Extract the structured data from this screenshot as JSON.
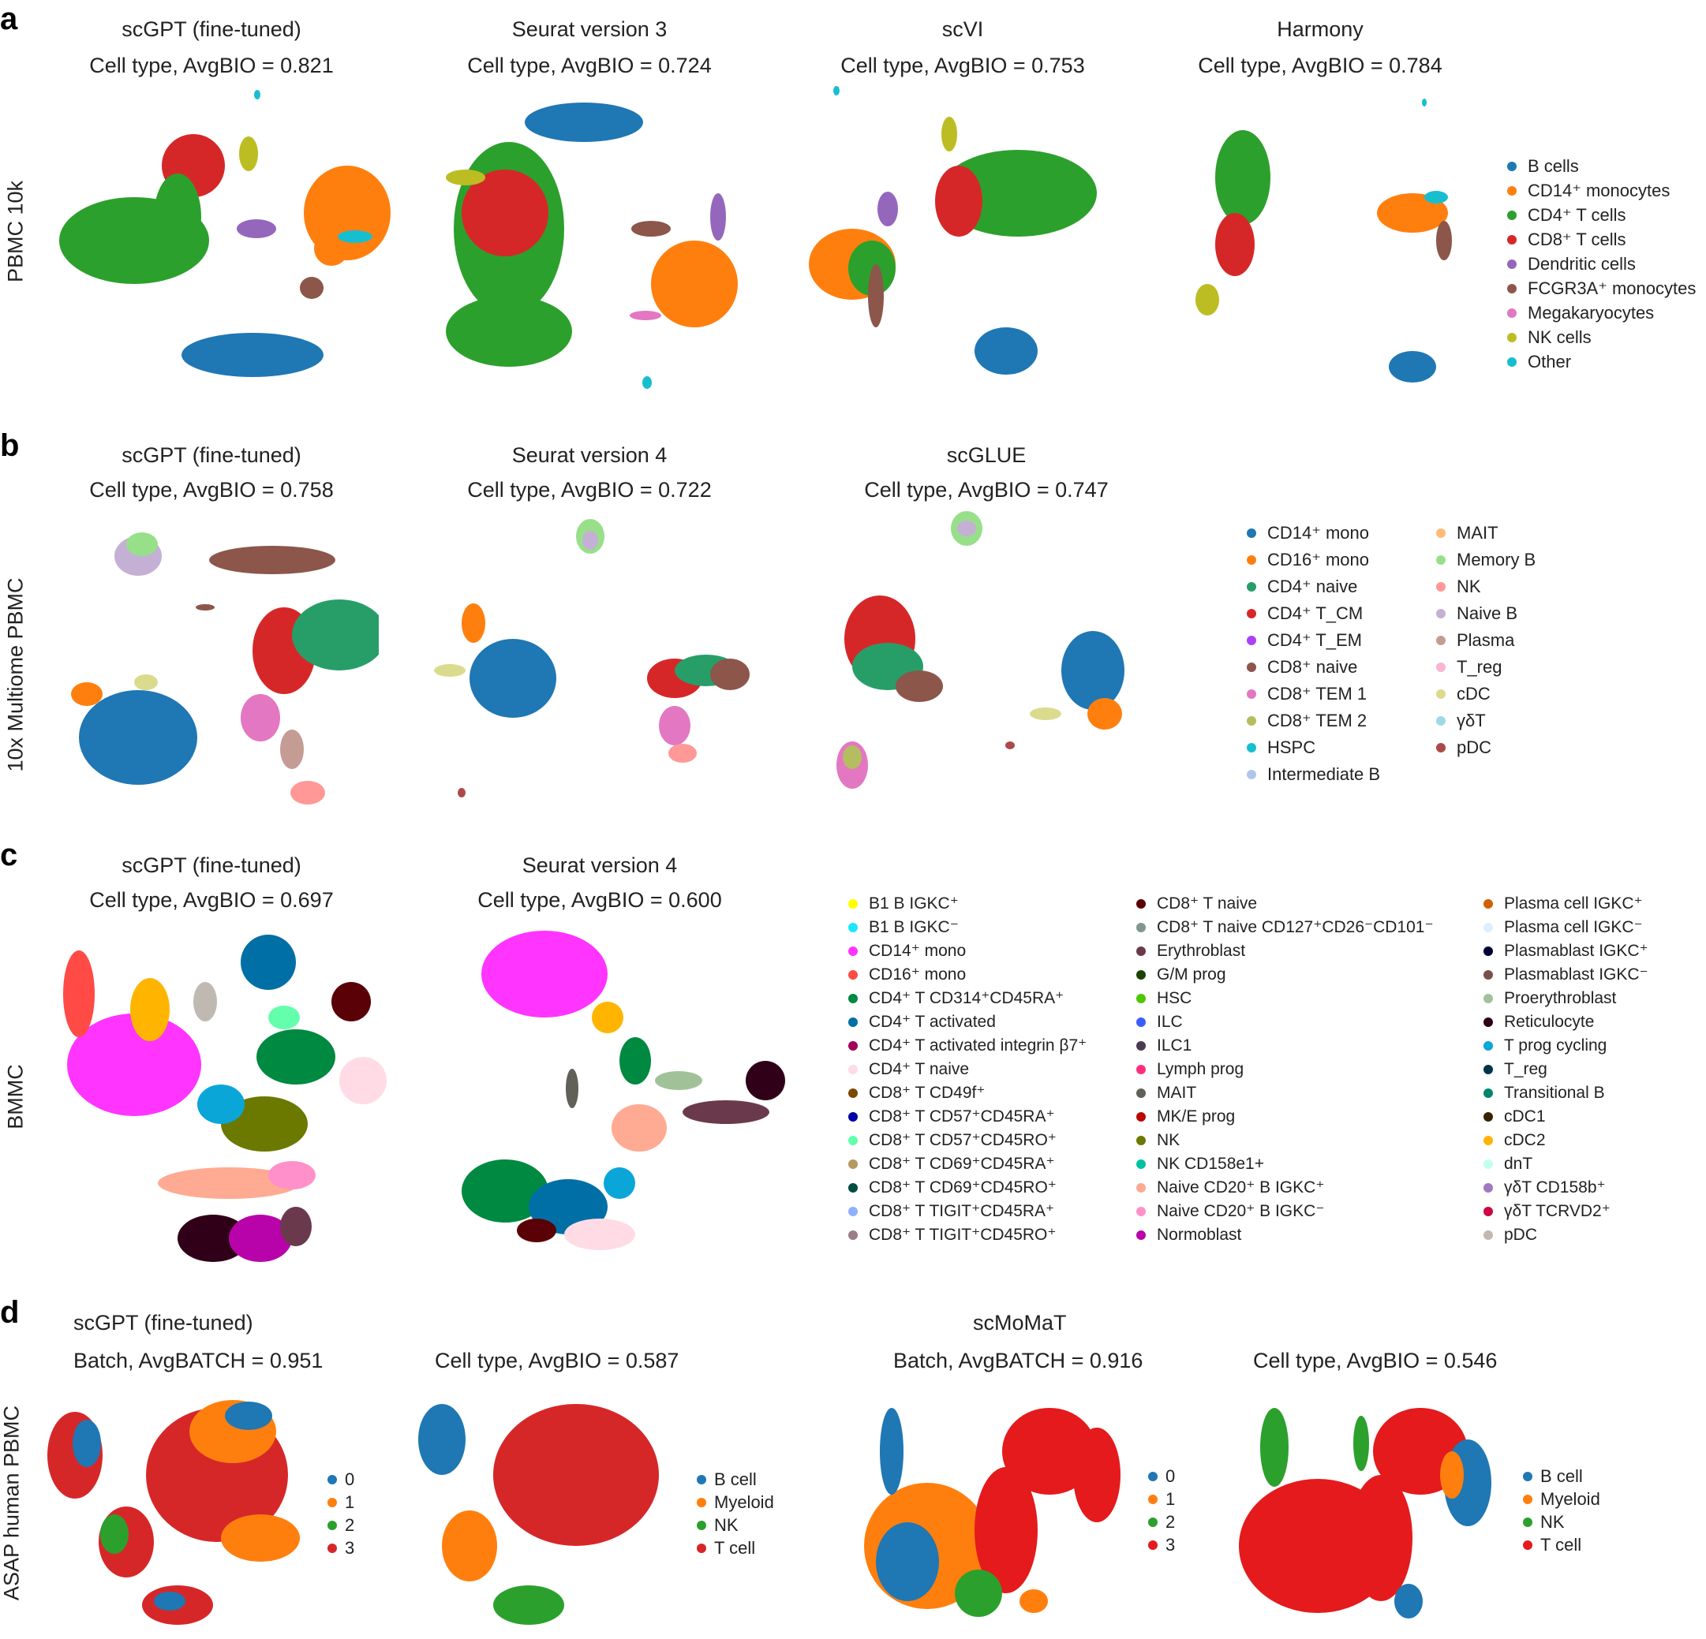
{
  "panels": [
    {
      "letter": "a",
      "row_label": "PBMC 10k",
      "plots": [
        {
          "method": "scGPT (fine-tuned)",
          "metric": "Cell type, AvgBIO = 0.821"
        },
        {
          "method": "Seurat version 3",
          "metric": "Cell type, AvgBIO = 0.724"
        },
        {
          "method": "scVI",
          "metric": "Cell type, AvgBIO = 0.753"
        },
        {
          "method": "Harmony",
          "metric": "Cell type, AvgBIO = 0.784"
        }
      ],
      "legend": [
        {
          "label": "B cells",
          "color": "#1f77b4"
        },
        {
          "label": "CD14⁺ monocytes",
          "color": "#ff7f0e"
        },
        {
          "label": "CD4⁺ T cells",
          "color": "#2ca02c"
        },
        {
          "label": "CD8⁺ T cells",
          "color": "#d62728"
        },
        {
          "label": "Dendritic cells",
          "color": "#9467bd"
        },
        {
          "label": "FCGR3A⁺ monocytes",
          "color": "#8c564b"
        },
        {
          "label": "Megakaryocytes",
          "color": "#e377c2"
        },
        {
          "label": "NK cells",
          "color": "#bcbd22"
        },
        {
          "label": "Other",
          "color": "#17becf"
        }
      ]
    },
    {
      "letter": "b",
      "row_label": "10x Multiome PBMC",
      "plots": [
        {
          "method": "scGPT (fine-tuned)",
          "metric": "Cell type, AvgBIO = 0.758"
        },
        {
          "method": "Seurat version 4",
          "metric": "Cell type, AvgBIO = 0.722"
        },
        {
          "method": "scGLUE",
          "metric": "Cell type, AvgBIO = 0.747"
        }
      ],
      "legend": [
        {
          "label": "CD14⁺ mono",
          "color": "#1f77b4"
        },
        {
          "label": "CD16⁺ mono",
          "color": "#ff7f0e"
        },
        {
          "label": "CD4⁺ naive",
          "color": "#279e68"
        },
        {
          "label": "CD4⁺ T_CM",
          "color": "#d62728"
        },
        {
          "label": "CD4⁺ T_EM",
          "color": "#aa40fc"
        },
        {
          "label": "CD8⁺ naive",
          "color": "#8c564b"
        },
        {
          "label": "CD8⁺ TEM 1",
          "color": "#e377c2"
        },
        {
          "label": "CD8⁺ TEM 2",
          "color": "#b5bd61"
        },
        {
          "label": "HSPC",
          "color": "#17becf"
        },
        {
          "label": "Intermediate B",
          "color": "#aec7e8"
        },
        {
          "label": "MAIT",
          "color": "#ffbb78"
        },
        {
          "label": "Memory B",
          "color": "#98df8a"
        },
        {
          "label": "NK",
          "color": "#ff9896"
        },
        {
          "label": "Naive B",
          "color": "#c5b0d5"
        },
        {
          "label": "Plasma",
          "color": "#c49c94"
        },
        {
          "label": "T_reg",
          "color": "#f7b6d2"
        },
        {
          "label": "cDC",
          "color": "#dbdb8d"
        },
        {
          "label": "γδT",
          "color": "#9edae5"
        },
        {
          "label": "pDC",
          "color": "#ad494a"
        }
      ]
    },
    {
      "letter": "c",
      "row_label": "BMMC",
      "plots": [
        {
          "method": "scGPT (fine-tuned)",
          "metric": "Cell type, AvgBIO = 0.697"
        },
        {
          "method": "Seurat version 4",
          "metric": "Cell type, AvgBIO = 0.600"
        }
      ],
      "legend": [
        {
          "label": "B1 B IGKC⁺",
          "color": "#ffff00"
        },
        {
          "label": "B1 B IGKC⁻",
          "color": "#1ce6ff"
        },
        {
          "label": "CD14⁺ mono",
          "color": "#ff34ff"
        },
        {
          "label": "CD16⁺ mono",
          "color": "#ff4a46"
        },
        {
          "label": "CD4⁺ T CD314⁺CD45RA⁺",
          "color": "#008941"
        },
        {
          "label": "CD4⁺ T activated",
          "color": "#006fa6"
        },
        {
          "label": "CD4⁺ T activated integrin β7⁺",
          "color": "#a30059"
        },
        {
          "label": "CD4⁺ T naive",
          "color": "#ffdbe5"
        },
        {
          "label": "CD8⁺ T CD49f⁺",
          "color": "#7a4900"
        },
        {
          "label": "CD8⁺ T CD57⁺CD45RA⁺",
          "color": "#0000a6"
        },
        {
          "label": "CD8⁺ T CD57⁺CD45RO⁺",
          "color": "#63ffac"
        },
        {
          "label": "CD8⁺ T CD69⁺CD45RA⁺",
          "color": "#b79762"
        },
        {
          "label": "CD8⁺ T CD69⁺CD45RO⁺",
          "color": "#004d43"
        },
        {
          "label": "CD8⁺ T TIGIT⁺CD45RA⁺",
          "color": "#8fb0ff"
        },
        {
          "label": "CD8⁺ T TIGIT⁺CD45RO⁺",
          "color": "#997d87"
        },
        {
          "label": "CD8⁺ T naive",
          "color": "#5a0007"
        },
        {
          "label": "CD8⁺ T naive CD127⁺CD26⁻CD101⁻",
          "color": "#809693"
        },
        {
          "label": "Erythroblast",
          "color": "#6a3a4c"
        },
        {
          "label": "G/M prog",
          "color": "#1b4400"
        },
        {
          "label": "HSC",
          "color": "#4fc601"
        },
        {
          "label": "ILC",
          "color": "#3b5dff"
        },
        {
          "label": "ILC1",
          "color": "#4a3b53"
        },
        {
          "label": "Lymph prog",
          "color": "#ff2f80"
        },
        {
          "label": "MAIT",
          "color": "#61615a"
        },
        {
          "label": "MK/E prog",
          "color": "#ba0900"
        },
        {
          "label": "NK",
          "color": "#6b7900"
        },
        {
          "label": "NK CD158e1+",
          "color": "#00c2a0"
        },
        {
          "label": "Naive CD20⁺ B IGKC⁺",
          "color": "#ffaa92"
        },
        {
          "label": "Naive CD20⁺ B IGKC⁻",
          "color": "#ff90c9"
        },
        {
          "label": "Normoblast",
          "color": "#b903aa"
        },
        {
          "label": "Plasma cell IGKC⁺",
          "color": "#d16100"
        },
        {
          "label": "Plasma cell IGKC⁻",
          "color": "#ddefff"
        },
        {
          "label": "Plasmablast IGKC⁺",
          "color": "#000035"
        },
        {
          "label": "Plasmablast IGKC⁻",
          "color": "#7b4f4b"
        },
        {
          "label": "Proerythroblast",
          "color": "#a1c299"
        },
        {
          "label": "Reticulocyte",
          "color": "#300018"
        },
        {
          "label": "T prog cycling",
          "color": "#0aa6d8"
        },
        {
          "label": "T_reg",
          "color": "#013349"
        },
        {
          "label": "Transitional B",
          "color": "#00846f"
        },
        {
          "label": "cDC1",
          "color": "#372101"
        },
        {
          "label": "cDC2",
          "color": "#ffb500"
        },
        {
          "label": "dnT",
          "color": "#c2ffed"
        },
        {
          "label": "γδT CD158b⁺",
          "color": "#a079bf"
        },
        {
          "label": "γδT TCRVD2⁺",
          "color": "#cc0744"
        },
        {
          "label": "pDC",
          "color": "#c0b9b2"
        }
      ]
    },
    {
      "letter": "d",
      "row_label": "ASAP human PBMC",
      "groups": [
        "scGPT (fine-tuned)",
        "scMoMaT"
      ],
      "plots": [
        {
          "metric": "Batch, AvgBATCH = 0.951",
          "legend": [
            {
              "label": "0",
              "color": "#1f77b4"
            },
            {
              "label": "1",
              "color": "#ff7f0e"
            },
            {
              "label": "2",
              "color": "#2ca02c"
            },
            {
              "label": "3",
              "color": "#d62728"
            }
          ]
        },
        {
          "metric": "Cell type, AvgBIO = 0.587",
          "legend": [
            {
              "label": "B cell",
              "color": "#1f77b4"
            },
            {
              "label": "Myeloid",
              "color": "#ff7f0e"
            },
            {
              "label": "NK",
              "color": "#2ca02c"
            },
            {
              "label": "T cell",
              "color": "#d62728"
            }
          ]
        },
        {
          "metric": "Batch, AvgBATCH = 0.916",
          "legend": [
            {
              "label": "0",
              "color": "#1f77b4"
            },
            {
              "label": "1",
              "color": "#ff7f0e"
            },
            {
              "label": "2",
              "color": "#2ca02c"
            },
            {
              "label": "3",
              "color": "#e41a1c"
            }
          ]
        },
        {
          "metric": "Cell type, AvgBIO = 0.546",
          "legend": [
            {
              "label": "B cell",
              "color": "#1f77b4"
            },
            {
              "label": "Myeloid",
              "color": "#ff7f0e"
            },
            {
              "label": "NK",
              "color": "#2ca02c"
            },
            {
              "label": "T cell",
              "color": "#e41a1c"
            }
          ]
        }
      ]
    }
  ]
}
